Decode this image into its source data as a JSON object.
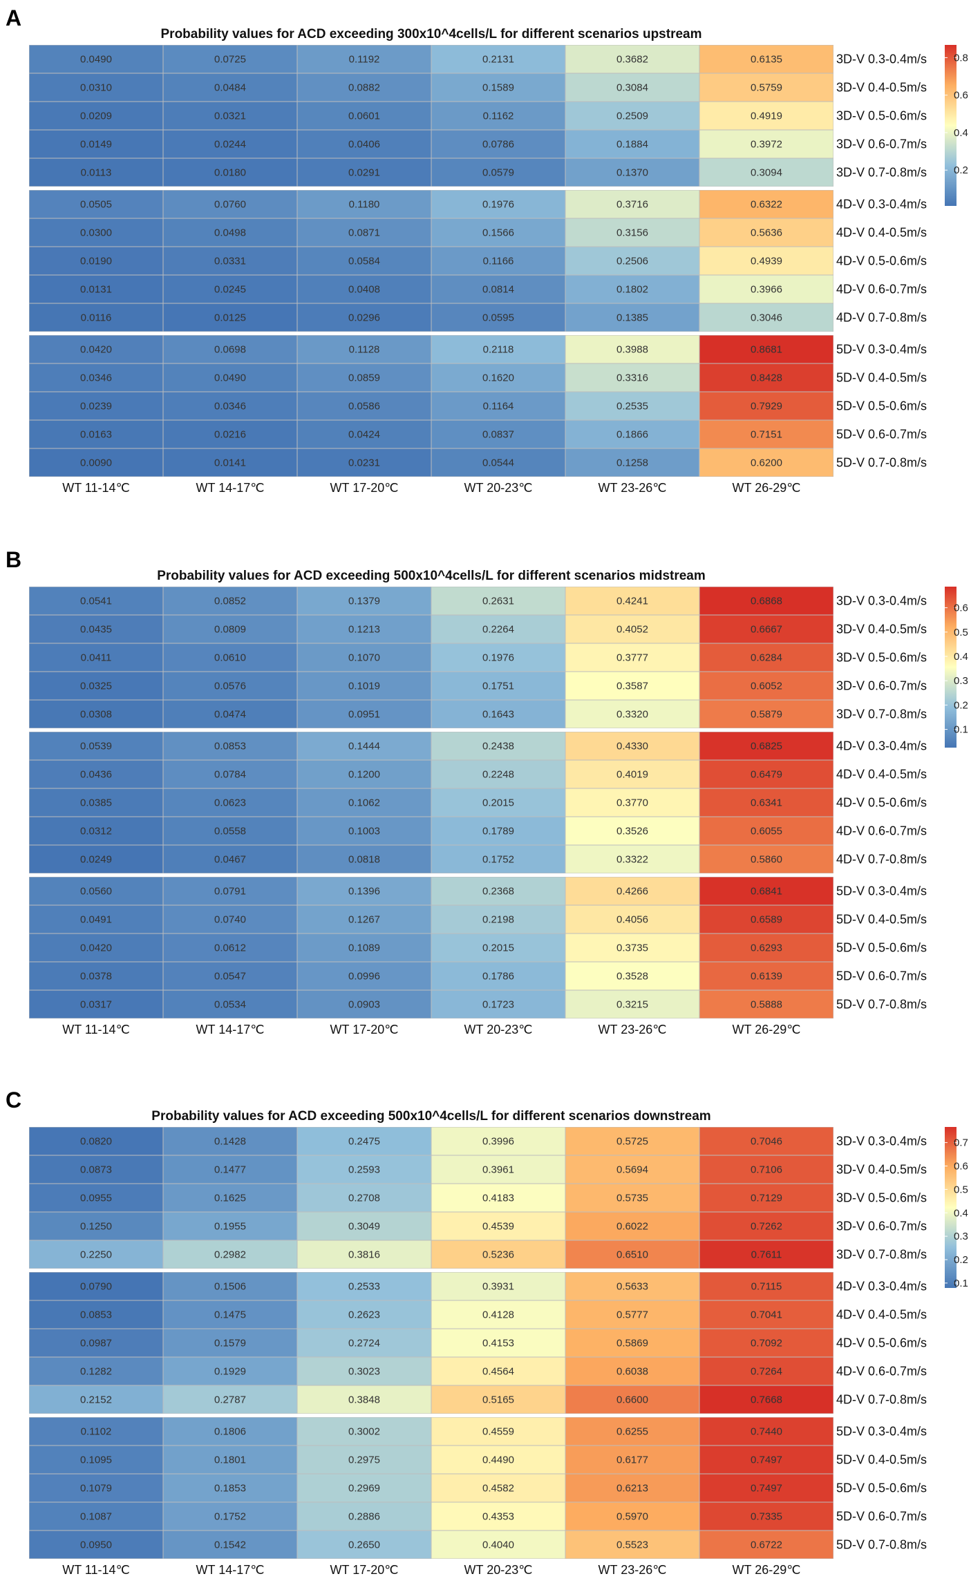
{
  "figure": {
    "colors": {
      "low": "#4575b4",
      "mid_low": "#91bfdb",
      "mid": "#ffffbf",
      "mid_high": "#fdae61",
      "high": "#d73027",
      "grid": "#bdbdbd",
      "separator": "#ffffff"
    }
  },
  "chart_data": [
    {
      "panel": "A",
      "type": "heatmap",
      "title": "Probability values for ACD exceeding 300x10^4cells/L for different scenarios upstream",
      "columns": [
        "WT 11-14℃",
        "WT 14-17℃",
        "WT 17-20℃",
        "WT 20-23℃",
        "WT 23-26℃",
        "WT 26-29℃"
      ],
      "groups": [
        {
          "rows": [
            {
              "label": "3D-V  0.3-0.4m/s",
              "values": [
                "0.0490",
                "0.0725",
                "0.1192",
                "0.2131",
                "0.3682",
                "0.6135"
              ]
            },
            {
              "label": "3D-V  0.4-0.5m/s",
              "values": [
                "0.0310",
                "0.0484",
                "0.0882",
                "0.1589",
                "0.3084",
                "0.5759"
              ]
            },
            {
              "label": "3D-V  0.5-0.6m/s",
              "values": [
                "0.0209",
                "0.0321",
                "0.0601",
                "0.1162",
                "0.2509",
                "0.4919"
              ]
            },
            {
              "label": "3D-V  0.6-0.7m/s",
              "values": [
                "0.0149",
                "0.0244",
                "0.0406",
                "0.0786",
                "0.1884",
                "0.3972"
              ]
            },
            {
              "label": "3D-V  0.7-0.8m/s",
              "values": [
                "0.0113",
                "0.0180",
                "0.0291",
                "0.0579",
                "0.1370",
                "0.3094"
              ]
            }
          ]
        },
        {
          "rows": [
            {
              "label": "4D-V  0.3-0.4m/s",
              "values": [
                "0.0505",
                "0.0760",
                "0.1180",
                "0.1976",
                "0.3716",
                "0.6322"
              ]
            },
            {
              "label": "4D-V  0.4-0.5m/s",
              "values": [
                "0.0300",
                "0.0498",
                "0.0871",
                "0.1566",
                "0.3156",
                "0.5636"
              ]
            },
            {
              "label": "4D-V  0.5-0.6m/s",
              "values": [
                "0.0190",
                "0.0331",
                "0.0584",
                "0.1166",
                "0.2506",
                "0.4939"
              ]
            },
            {
              "label": "4D-V  0.6-0.7m/s",
              "values": [
                "0.0131",
                "0.0245",
                "0.0408",
                "0.0814",
                "0.1802",
                "0.3966"
              ]
            },
            {
              "label": "4D-V  0.7-0.8m/s",
              "values": [
                "0.0116",
                "0.0125",
                "0.0296",
                "0.0595",
                "0.1385",
                "0.3046"
              ]
            }
          ]
        },
        {
          "rows": [
            {
              "label": "5D-V  0.3-0.4m/s",
              "values": [
                "0.0420",
                "0.0698",
                "0.1128",
                "0.2118",
                "0.3988",
                "0.8681"
              ]
            },
            {
              "label": "5D-V  0.4-0.5m/s",
              "values": [
                "0.0346",
                "0.0490",
                "0.0859",
                "0.1620",
                "0.3316",
                "0.8428"
              ]
            },
            {
              "label": "5D-V  0.5-0.6m/s",
              "values": [
                "0.0239",
                "0.0346",
                "0.0586",
                "0.1164",
                "0.2535",
                "0.7929"
              ]
            },
            {
              "label": "5D-V  0.6-0.7m/s",
              "values": [
                "0.0163",
                "0.0216",
                "0.0424",
                "0.0837",
                "0.1866",
                "0.7151"
              ]
            },
            {
              "label": "5D-V  0.7-0.8m/s",
              "values": [
                "0.0090",
                "0.0141",
                "0.0231",
                "0.0544",
                "0.1258",
                "0.6200"
              ]
            }
          ]
        }
      ],
      "colorbar": {
        "min": 0.009,
        "max": 0.868,
        "ticks": [
          "0.2",
          "0.4",
          "0.6",
          "0.8"
        ],
        "tick_values": [
          0.2,
          0.4,
          0.6,
          0.8
        ]
      }
    },
    {
      "panel": "B",
      "type": "heatmap",
      "title": "Probability values for ACD exceeding 500x10^4cells/L for different scenarios midstream",
      "columns": [
        "WT 11-14℃",
        "WT 14-17℃",
        "WT 17-20℃",
        "WT 20-23℃",
        "WT 23-26℃",
        "WT 26-29℃"
      ],
      "groups": [
        {
          "rows": [
            {
              "label": "3D-V  0.3-0.4m/s",
              "values": [
                "0.0541",
                "0.0852",
                "0.1379",
                "0.2631",
                "0.4241",
                "0.6868"
              ]
            },
            {
              "label": "3D-V  0.4-0.5m/s",
              "values": [
                "0.0435",
                "0.0809",
                "0.1213",
                "0.2264",
                "0.4052",
                "0.6667"
              ]
            },
            {
              "label": "3D-V  0.5-0.6m/s",
              "values": [
                "0.0411",
                "0.0610",
                "0.1070",
                "0.1976",
                "0.3777",
                "0.6284"
              ]
            },
            {
              "label": "3D-V  0.6-0.7m/s",
              "values": [
                "0.0325",
                "0.0576",
                "0.1019",
                "0.1751",
                "0.3587",
                "0.6052"
              ]
            },
            {
              "label": "3D-V  0.7-0.8m/s",
              "values": [
                "0.0308",
                "0.0474",
                "0.0951",
                "0.1643",
                "0.3320",
                "0.5879"
              ]
            }
          ]
        },
        {
          "rows": [
            {
              "label": "4D-V  0.3-0.4m/s",
              "values": [
                "0.0539",
                "0.0853",
                "0.1444",
                "0.2438",
                "0.4330",
                "0.6825"
              ]
            },
            {
              "label": "4D-V  0.4-0.5m/s",
              "values": [
                "0.0436",
                "0.0784",
                "0.1200",
                "0.2248",
                "0.4019",
                "0.6479"
              ]
            },
            {
              "label": "4D-V  0.5-0.6m/s",
              "values": [
                "0.0385",
                "0.0623",
                "0.1062",
                "0.2015",
                "0.3770",
                "0.6341"
              ]
            },
            {
              "label": "4D-V  0.6-0.7m/s",
              "values": [
                "0.0312",
                "0.0558",
                "0.1003",
                "0.1789",
                "0.3526",
                "0.6055"
              ]
            },
            {
              "label": "4D-V  0.7-0.8m/s",
              "values": [
                "0.0249",
                "0.0467",
                "0.0818",
                "0.1752",
                "0.3322",
                "0.5860"
              ]
            }
          ]
        },
        {
          "rows": [
            {
              "label": "5D-V  0.3-0.4m/s",
              "values": [
                "0.0560",
                "0.0791",
                "0.1396",
                "0.2368",
                "0.4266",
                "0.6841"
              ]
            },
            {
              "label": "5D-V  0.4-0.5m/s",
              "values": [
                "0.0491",
                "0.0740",
                "0.1267",
                "0.2198",
                "0.4056",
                "0.6589"
              ]
            },
            {
              "label": "5D-V  0.5-0.6m/s",
              "values": [
                "0.0420",
                "0.0612",
                "0.1089",
                "0.2015",
                "0.3735",
                "0.6293"
              ]
            },
            {
              "label": "5D-V  0.6-0.7m/s",
              "values": [
                "0.0378",
                "0.0547",
                "0.0996",
                "0.1786",
                "0.3528",
                "0.6139"
              ]
            },
            {
              "label": "5D-V  0.7-0.8m/s",
              "values": [
                "0.0317",
                "0.0534",
                "0.0903",
                "0.1723",
                "0.3215",
                "0.5888"
              ]
            }
          ]
        }
      ],
      "colorbar": {
        "min": 0.0249,
        "max": 0.6868,
        "ticks": [
          "0.1",
          "0.2",
          "0.3",
          "0.4",
          "0.5",
          "0.6"
        ],
        "tick_values": [
          0.1,
          0.2,
          0.3,
          0.4,
          0.5,
          0.6
        ]
      }
    },
    {
      "panel": "C",
      "type": "heatmap",
      "title": "Probability values for ACD exceeding 500x10^4cells/L for different scenarios downstream",
      "columns": [
        "WT 11-14℃",
        "WT 14-17℃",
        "WT 17-20℃",
        "WT 20-23℃",
        "WT 23-26℃",
        "WT 26-29℃"
      ],
      "groups": [
        {
          "rows": [
            {
              "label": "3D-V  0.3-0.4m/s",
              "values": [
                "0.0820",
                "0.1428",
                "0.2475",
                "0.3996",
                "0.5725",
                "0.7046"
              ]
            },
            {
              "label": "3D-V  0.4-0.5m/s",
              "values": [
                "0.0873",
                "0.1477",
                "0.2593",
                "0.3961",
                "0.5694",
                "0.7106"
              ]
            },
            {
              "label": "3D-V  0.5-0.6m/s",
              "values": [
                "0.0955",
                "0.1625",
                "0.2708",
                "0.4183",
                "0.5735",
                "0.7129"
              ]
            },
            {
              "label": "3D-V  0.6-0.7m/s",
              "values": [
                "0.1250",
                "0.1955",
                "0.3049",
                "0.4539",
                "0.6022",
                "0.7262"
              ]
            },
            {
              "label": "3D-V  0.7-0.8m/s",
              "values": [
                "0.2250",
                "0.2982",
                "0.3816",
                "0.5236",
                "0.6510",
                "0.7611"
              ]
            }
          ]
        },
        {
          "rows": [
            {
              "label": "4D-V  0.3-0.4m/s",
              "values": [
                "0.0790",
                "0.1506",
                "0.2533",
                "0.3931",
                "0.5633",
                "0.7115"
              ]
            },
            {
              "label": "4D-V  0.4-0.5m/s",
              "values": [
                "0.0853",
                "0.1475",
                "0.2623",
                "0.4128",
                "0.5777",
                "0.7041"
              ]
            },
            {
              "label": "4D-V  0.5-0.6m/s",
              "values": [
                "0.0987",
                "0.1579",
                "0.2724",
                "0.4153",
                "0.5869",
                "0.7092"
              ]
            },
            {
              "label": "4D-V  0.6-0.7m/s",
              "values": [
                "0.1282",
                "0.1929",
                "0.3023",
                "0.4564",
                "0.6038",
                "0.7264"
              ]
            },
            {
              "label": "4D-V  0.7-0.8m/s",
              "values": [
                "0.2152",
                "0.2787",
                "0.3848",
                "0.5165",
                "0.6600",
                "0.7668"
              ]
            }
          ]
        },
        {
          "rows": [
            {
              "label": "5D-V  0.3-0.4m/s",
              "values": [
                "0.1102",
                "0.1806",
                "0.3002",
                "0.4559",
                "0.6255",
                "0.7440"
              ]
            },
            {
              "label": "5D-V  0.4-0.5m/s",
              "values": [
                "0.1095",
                "0.1801",
                "0.2975",
                "0.4490",
                "0.6177",
                "0.7497"
              ]
            },
            {
              "label": "5D-V  0.5-0.6m/s",
              "values": [
                "0.1079",
                "0.1853",
                "0.2969",
                "0.4582",
                "0.6213",
                "0.7497"
              ]
            },
            {
              "label": "5D-V  0.6-0.7m/s",
              "values": [
                "0.1087",
                "0.1752",
                "0.2886",
                "0.4353",
                "0.5970",
                "0.7335"
              ]
            },
            {
              "label": "5D-V  0.7-0.8m/s",
              "values": [
                "0.0950",
                "0.1542",
                "0.2650",
                "0.4040",
                "0.5523",
                "0.6722"
              ]
            }
          ]
        }
      ],
      "colorbar": {
        "min": 0.079,
        "max": 0.7668,
        "ticks": [
          "0.1",
          "0.2",
          "0.3",
          "0.4",
          "0.5",
          "0.6",
          "0.7"
        ],
        "tick_values": [
          0.1,
          0.2,
          0.3,
          0.4,
          0.5,
          0.6,
          0.7
        ]
      }
    }
  ]
}
